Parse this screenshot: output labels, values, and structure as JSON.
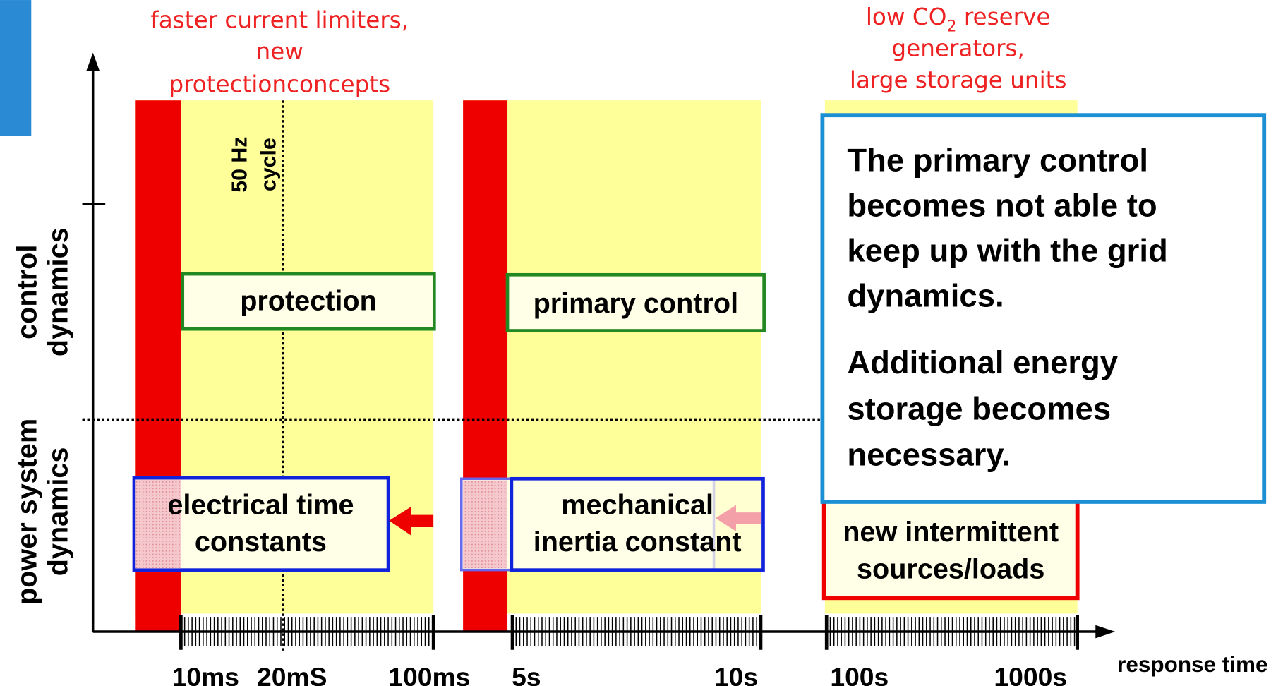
{
  "top_notes": {
    "left": [
      "faster current limiters,",
      "new",
      "protectionconcepts"
    ],
    "right": {
      "line1": {
        "text": "low CO",
        "sub": "2",
        "after": " reserve"
      },
      "line2": "generators,",
      "line3": "large storage units"
    }
  },
  "y_labels": {
    "control": [
      "control",
      "dynamics"
    ],
    "power": [
      "power system",
      "dynamics"
    ]
  },
  "cycle_label": [
    "50 Hz",
    "cycle"
  ],
  "x_labels": [
    "10ms",
    "20mS",
    "100ms",
    "5s",
    "10s",
    "100s",
    "1000s"
  ],
  "x_axis_title": "response time",
  "boxes": {
    "protection": "protection",
    "primary_control": "primary control",
    "electrical": [
      "electrical time",
      "constants"
    ],
    "mechanical": [
      "mechanical",
      "inertia constant"
    ],
    "intermittent": [
      "new intermittent",
      "sources/loads"
    ]
  },
  "callout": {
    "paragraph1": [
      "The primary control",
      "becomes not able to",
      "keep up with the grid",
      "dynamics."
    ],
    "paragraph2": [
      "Additional energy",
      "storage becomes",
      "necessary."
    ]
  }
}
